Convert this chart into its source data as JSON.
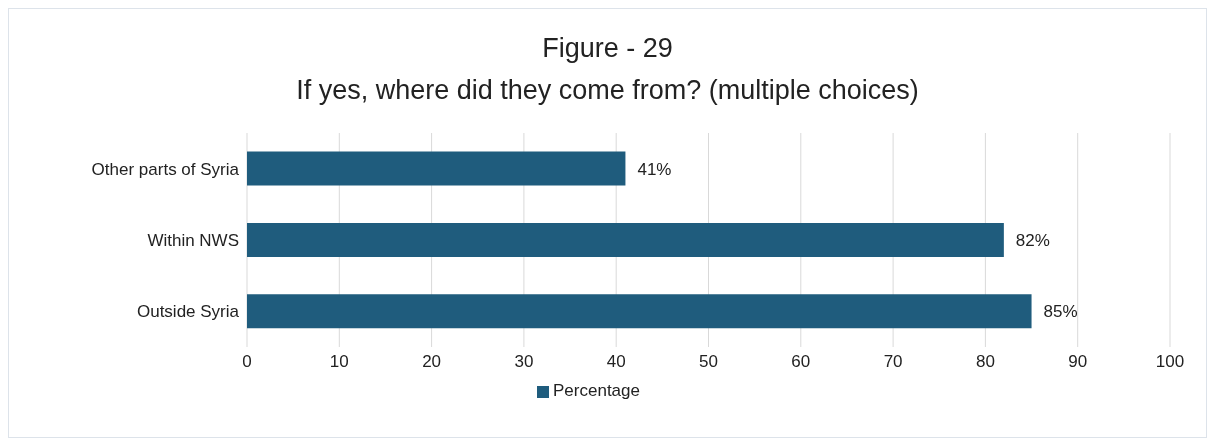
{
  "chart_data": {
    "type": "bar",
    "orientation": "horizontal",
    "title": "Figure - 29",
    "subtitle": "If yes, where did they come from? (multiple choices)",
    "categories": [
      "Other parts of Syria",
      "Within NWS",
      "Outside Syria"
    ],
    "series": [
      {
        "name": "Percentage",
        "color": "#1f5c7d",
        "values": [
          41,
          82,
          85
        ],
        "value_labels": [
          "41%",
          "82%",
          "85%"
        ]
      }
    ],
    "xlim": [
      0,
      100
    ],
    "xticks": [
      0,
      10,
      20,
      30,
      40,
      50,
      60,
      70,
      80,
      90,
      100
    ],
    "grid": "x",
    "legend": "bottom"
  }
}
